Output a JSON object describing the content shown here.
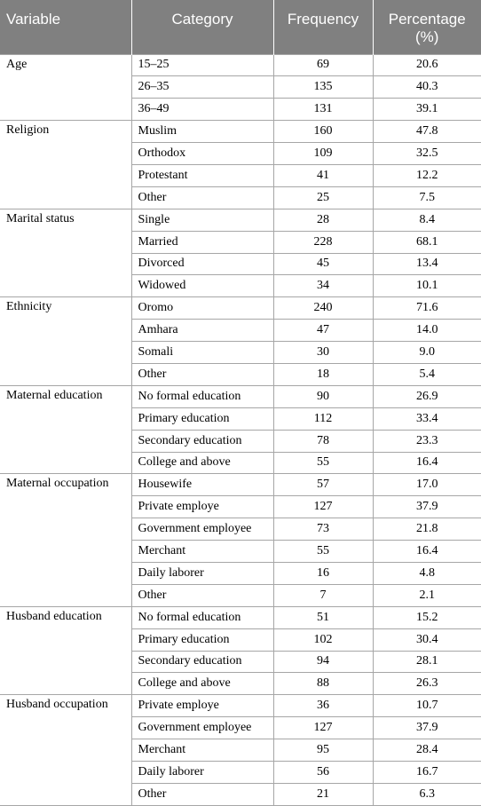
{
  "headers": {
    "variable": "Variable",
    "category": "Category",
    "frequency": "Frequency",
    "percentage_line1": "Percentage",
    "percentage_line2": "(%)"
  },
  "groups": [
    {
      "variable": "Age",
      "rows": [
        {
          "category": "15–25",
          "frequency": "69",
          "percentage": "20.6"
        },
        {
          "category": "26–35",
          "frequency": "135",
          "percentage": "40.3"
        },
        {
          "category": "36–49",
          "frequency": "131",
          "percentage": "39.1"
        }
      ]
    },
    {
      "variable": "Religion",
      "rows": [
        {
          "category": "Muslim",
          "frequency": "160",
          "percentage": "47.8"
        },
        {
          "category": "Orthodox",
          "frequency": "109",
          "percentage": "32.5"
        },
        {
          "category": "Protestant",
          "frequency": "41",
          "percentage": "12.2"
        },
        {
          "category": "Other",
          "frequency": "25",
          "percentage": "7.5"
        }
      ]
    },
    {
      "variable": "Marital status",
      "rows": [
        {
          "category": "Single",
          "frequency": "28",
          "percentage": "8.4"
        },
        {
          "category": "Married",
          "frequency": "228",
          "percentage": "68.1"
        },
        {
          "category": "Divorced",
          "frequency": "45",
          "percentage": "13.4"
        },
        {
          "category": "Widowed",
          "frequency": "34",
          "percentage": "10.1"
        }
      ]
    },
    {
      "variable": "Ethnicity",
      "rows": [
        {
          "category": "Oromo",
          "frequency": "240",
          "percentage": "71.6"
        },
        {
          "category": "Amhara",
          "frequency": "47",
          "percentage": "14.0"
        },
        {
          "category": "Somali",
          "frequency": "30",
          "percentage": "9.0"
        },
        {
          "category": "Other",
          "frequency": "18",
          "percentage": "5.4"
        }
      ]
    },
    {
      "variable": "Maternal education",
      "rows": [
        {
          "category": "No formal education",
          "frequency": "90",
          "percentage": "26.9"
        },
        {
          "category": "Primary education",
          "frequency": "112",
          "percentage": "33.4"
        },
        {
          "category": "Secondary education",
          "frequency": "78",
          "percentage": "23.3"
        },
        {
          "category": "College and above",
          "frequency": "55",
          "percentage": "16.4"
        }
      ]
    },
    {
      "variable": "Maternal occupation",
      "rows": [
        {
          "category": "Housewife",
          "frequency": "57",
          "percentage": "17.0"
        },
        {
          "category": "Private employe",
          "frequency": "127",
          "percentage": "37.9"
        },
        {
          "category": "Government employee",
          "frequency": "73",
          "percentage": "21.8"
        },
        {
          "category": "Merchant",
          "frequency": "55",
          "percentage": "16.4"
        },
        {
          "category": "Daily laborer",
          "frequency": "16",
          "percentage": "4.8"
        },
        {
          "category": "Other",
          "frequency": "7",
          "percentage": "2.1"
        }
      ]
    },
    {
      "variable": "Husband education",
      "rows": [
        {
          "category": "No formal education",
          "frequency": "51",
          "percentage": "15.2"
        },
        {
          "category": "Primary education",
          "frequency": "102",
          "percentage": "30.4"
        },
        {
          "category": "Secondary education",
          "frequency": "94",
          "percentage": "28.1"
        },
        {
          "category": "College and above",
          "frequency": "88",
          "percentage": "26.3"
        }
      ]
    },
    {
      "variable": "Husband occupation",
      "rows": [
        {
          "category": "Private employe",
          "frequency": "36",
          "percentage": "10.7"
        },
        {
          "category": "Government employee",
          "frequency": "127",
          "percentage": "37.9"
        },
        {
          "category": "Merchant",
          "frequency": "95",
          "percentage": "28.4"
        },
        {
          "category": "Daily laborer",
          "frequency": "56",
          "percentage": "16.7"
        },
        {
          "category": "Other",
          "frequency": "21",
          "percentage": "6.3"
        }
      ]
    }
  ]
}
